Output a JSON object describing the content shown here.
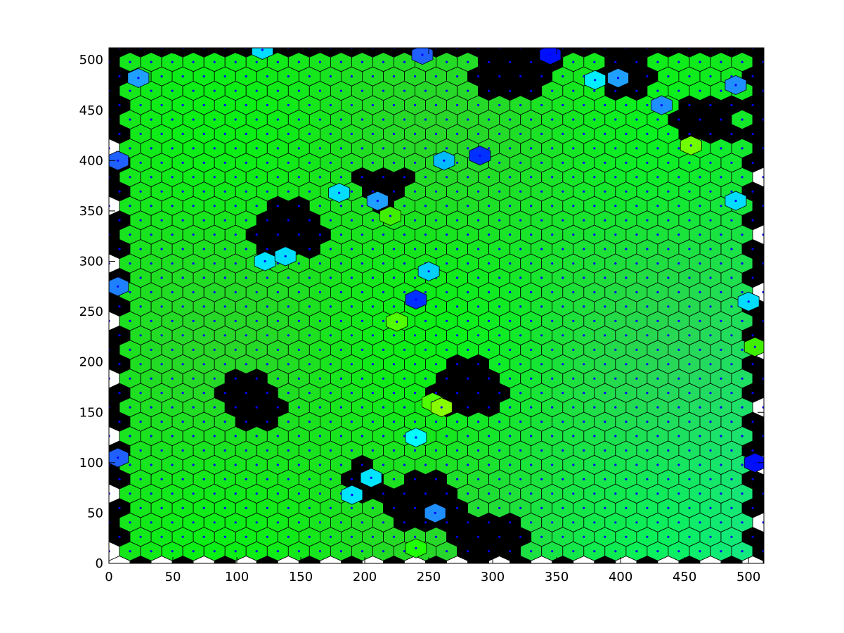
{
  "chart_data": {
    "type": "voronoi",
    "title": "",
    "xlabel": "",
    "ylabel": "",
    "xlim": [
      0,
      512
    ],
    "ylim": [
      0,
      512
    ],
    "x_ticks": [
      0,
      50,
      100,
      150,
      200,
      250,
      300,
      350,
      400,
      450,
      500
    ],
    "y_ticks": [
      0,
      50,
      100,
      150,
      200,
      250,
      300,
      350,
      400,
      450,
      500
    ],
    "x_tick_labels": [
      "0",
      "50",
      "100",
      "150",
      "200",
      "250",
      "300",
      "350",
      "400",
      "450",
      "500"
    ],
    "y_tick_labels": [
      "0",
      "50",
      "100",
      "150",
      "200",
      "250",
      "300",
      "350",
      "400",
      "450",
      "500"
    ],
    "grid": false,
    "legend": "none",
    "cell_pitch": 16.5,
    "holes": [
      {
        "cx": 140,
        "cy": 330,
        "r": 33
      },
      {
        "cx": 110,
        "cy": 160,
        "r": 27
      },
      {
        "cx": 215,
        "cy": 375,
        "r": 20
      },
      {
        "cx": 280,
        "cy": 175,
        "r": 33
      },
      {
        "cx": 250,
        "cy": 60,
        "r": 30
      },
      {
        "cx": 200,
        "cy": 80,
        "r": 20
      },
      {
        "cx": 315,
        "cy": 490,
        "r": 35
      },
      {
        "cx": 400,
        "cy": 485,
        "r": 22
      },
      {
        "cx": 470,
        "cy": 440,
        "r": 25
      },
      {
        "cx": 300,
        "cy": 22,
        "r": 30
      }
    ],
    "highlight_cells": [
      {
        "x": 122,
        "y": 300,
        "color": "#00e5ff"
      },
      {
        "x": 138,
        "y": 305,
        "color": "#00ddff"
      },
      {
        "x": 180,
        "y": 368,
        "color": "#00ddff"
      },
      {
        "x": 210,
        "y": 360,
        "color": "#1f9fff"
      },
      {
        "x": 220,
        "y": 345,
        "color": "#40ee00"
      },
      {
        "x": 262,
        "y": 400,
        "color": "#00bbff"
      },
      {
        "x": 240,
        "y": 262,
        "color": "#0030ff"
      },
      {
        "x": 250,
        "y": 290,
        "color": "#00d0ff"
      },
      {
        "x": 225,
        "y": 240,
        "color": "#50ff00"
      },
      {
        "x": 253,
        "y": 160,
        "color": "#50ff00"
      },
      {
        "x": 260,
        "y": 155,
        "color": "#88ff00"
      },
      {
        "x": 240,
        "y": 125,
        "color": "#00ffff"
      },
      {
        "x": 255,
        "y": 50,
        "color": "#1f8fff"
      },
      {
        "x": 240,
        "y": 15,
        "color": "#20ff00"
      },
      {
        "x": 190,
        "y": 68,
        "color": "#00e5ff"
      },
      {
        "x": 205,
        "y": 85,
        "color": "#00e5ff"
      },
      {
        "x": 290,
        "y": 405,
        "color": "#0030ff"
      },
      {
        "x": 345,
        "y": 505,
        "color": "#0010ff"
      },
      {
        "x": 380,
        "y": 480,
        "color": "#00eeff"
      },
      {
        "x": 398,
        "y": 482,
        "color": "#1fa0ff"
      },
      {
        "x": 432,
        "y": 455,
        "color": "#1f8fff"
      },
      {
        "x": 455,
        "y": 415,
        "color": "#70ff00"
      },
      {
        "x": 490,
        "y": 475,
        "color": "#1f8fff"
      },
      {
        "x": 490,
        "y": 360,
        "color": "#00ddff"
      },
      {
        "x": 500,
        "y": 260,
        "color": "#00ddff"
      },
      {
        "x": 505,
        "y": 215,
        "color": "#40ee00"
      },
      {
        "x": 505,
        "y": 100,
        "color": "#0010ff"
      },
      {
        "x": 7,
        "y": 400,
        "color": "#1f60ff"
      },
      {
        "x": 7,
        "y": 275,
        "color": "#1f80ff"
      },
      {
        "x": 7,
        "y": 105,
        "color": "#1f60ff"
      },
      {
        "x": 23,
        "y": 482,
        "color": "#1f9fff"
      },
      {
        "x": 245,
        "y": 505,
        "color": "#1f60ff"
      },
      {
        "x": 120,
        "y": 510,
        "color": "#00ddff"
      }
    ]
  }
}
